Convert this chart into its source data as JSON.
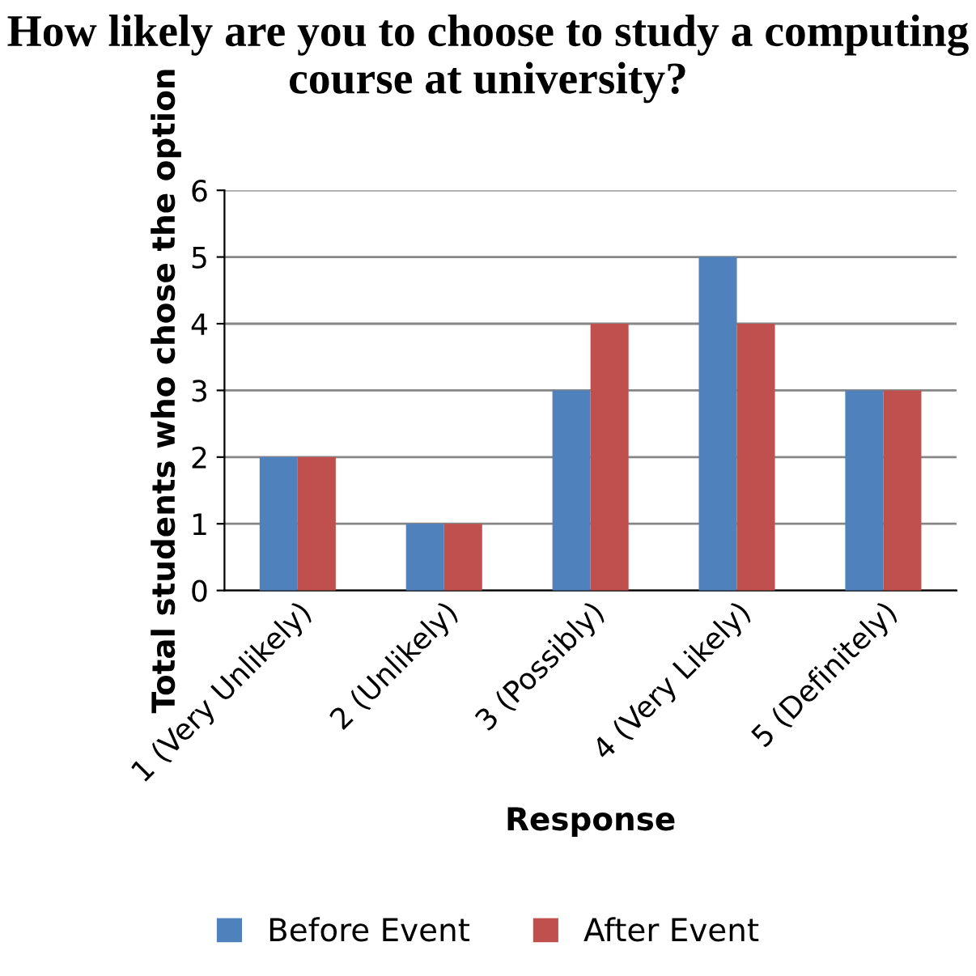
{
  "chart_data": {
    "type": "bar",
    "title": "How likely are you to choose to study a computing course at university?",
    "xlabel": "Response",
    "ylabel": "Total students who chose the option",
    "categories": [
      "1 (Very Unlikely)",
      "2 (Unlikely)",
      "3 (Possibly)",
      "4 (Very Likely)",
      "5 (Definitely)"
    ],
    "series": [
      {
        "name": "Before Event",
        "color": "#4f81bd",
        "values": [
          2,
          1,
          3,
          5,
          3
        ]
      },
      {
        "name": "After Event",
        "color": "#c0504d",
        "values": [
          2,
          1,
          4,
          4,
          3
        ]
      }
    ],
    "ylim": [
      0,
      6
    ],
    "yticks": [
      0,
      1,
      2,
      3,
      4,
      5,
      6
    ],
    "grid": "y",
    "legend": "bottom"
  }
}
